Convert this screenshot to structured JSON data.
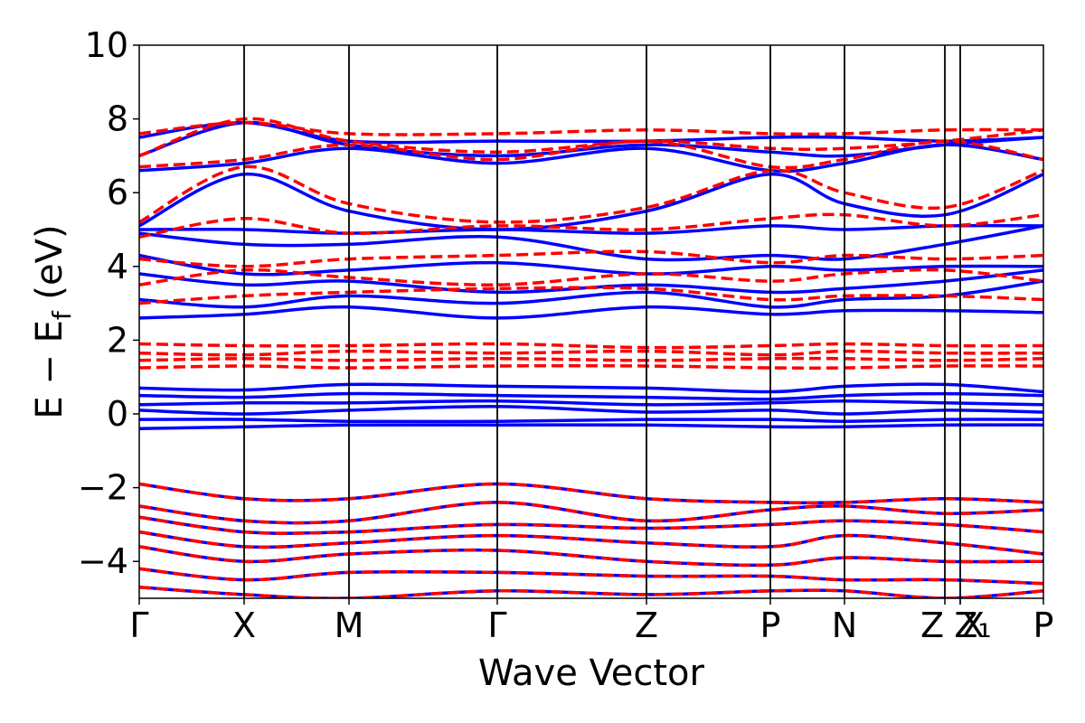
{
  "chart_data": {
    "type": "line",
    "xlabel": "Wave Vector",
    "ylabel": "E − E_f (eV)",
    "ylabel_parts": {
      "lead": "E − E",
      "sub": "f",
      "tail": " (eV)"
    },
    "ylim": [
      -5,
      10
    ],
    "yticks": [
      -4,
      -2,
      0,
      2,
      4,
      6,
      8,
      10
    ],
    "ytick_labels": [
      "−4",
      "−2",
      "0",
      "2",
      "4",
      "6",
      "8",
      "10"
    ],
    "kpath_labels": [
      "Γ",
      "X",
      "M",
      "Γ",
      "Z",
      "P",
      "N",
      "Z",
      "Z₁",
      "X",
      "P"
    ],
    "kpath_positions": [
      0,
      0.116,
      0.232,
      0.396,
      0.561,
      0.698,
      0.78,
      0.891,
      0.908,
      0.908,
      1.0
    ],
    "grid": false,
    "legend": "none",
    "colors": {
      "spin_up": "#0000ff",
      "spin_down": "#ff0000"
    },
    "series": [
      {
        "style": "solid",
        "color": "#0000ff",
        "bands": [
          {
            "x": [
              0,
              0.116,
              0.232,
              0.396,
              0.561,
              0.698,
              0.78,
              0.891,
              1.0
            ],
            "y": [
              -0.4,
              -0.35,
              -0.3,
              -0.3,
              -0.3,
              -0.35,
              -0.35,
              -0.3,
              -0.3
            ]
          },
          {
            "x": [
              0,
              0.116,
              0.232,
              0.396,
              0.561,
              0.698,
              0.78,
              0.891,
              1.0
            ],
            "y": [
              -0.15,
              -0.15,
              -0.2,
              -0.2,
              -0.15,
              -0.15,
              -0.2,
              -0.15,
              -0.15
            ]
          },
          {
            "x": [
              0,
              0.116,
              0.232,
              0.396,
              0.561,
              0.698,
              0.78,
              0.891,
              1.0
            ],
            "y": [
              0.1,
              0.0,
              0.1,
              0.2,
              0.05,
              0.1,
              0.0,
              0.1,
              0.05
            ]
          },
          {
            "x": [
              0,
              0.116,
              0.232,
              0.396,
              0.561,
              0.698,
              0.78,
              0.891,
              1.0
            ],
            "y": [
              0.25,
              0.3,
              0.3,
              0.35,
              0.25,
              0.3,
              0.35,
              0.3,
              0.25
            ]
          },
          {
            "x": [
              0,
              0.116,
              0.232,
              0.396,
              0.561,
              0.698,
              0.78,
              0.891,
              1.0
            ],
            "y": [
              0.5,
              0.45,
              0.55,
              0.5,
              0.45,
              0.4,
              0.5,
              0.55,
              0.5
            ]
          },
          {
            "x": [
              0,
              0.116,
              0.232,
              0.396,
              0.561,
              0.698,
              0.78,
              0.891,
              1.0
            ],
            "y": [
              0.7,
              0.65,
              0.8,
              0.75,
              0.7,
              0.6,
              0.75,
              0.8,
              0.6
            ]
          },
          {
            "x": [
              0,
              0.116,
              0.232,
              0.396,
              0.561,
              0.698,
              0.78,
              0.891,
              1.0
            ],
            "y": [
              2.6,
              2.7,
              2.9,
              2.6,
              2.9,
              2.7,
              2.8,
              2.8,
              2.75
            ]
          },
          {
            "x": [
              0,
              0.116,
              0.232,
              0.396,
              0.561,
              0.698,
              0.78,
              0.891,
              1.0
            ],
            "y": [
              3.1,
              2.9,
              3.2,
              3.0,
              3.3,
              2.9,
              3.1,
              3.2,
              3.6
            ]
          },
          {
            "x": [
              0,
              0.116,
              0.232,
              0.396,
              0.561,
              0.698,
              0.78,
              0.891,
              1.0
            ],
            "y": [
              3.8,
              3.5,
              3.6,
              3.3,
              3.5,
              3.3,
              3.4,
              3.6,
              3.9
            ]
          },
          {
            "x": [
              0,
              0.116,
              0.232,
              0.396,
              0.561,
              0.698,
              0.78,
              0.891,
              1.0
            ],
            "y": [
              4.3,
              3.8,
              3.9,
              4.1,
              3.8,
              4.0,
              3.9,
              4.0,
              4.0
            ]
          },
          {
            "x": [
              0,
              0.116,
              0.232,
              0.396,
              0.561,
              0.698,
              0.78,
              0.891,
              1.0
            ],
            "y": [
              4.9,
              4.6,
              4.6,
              4.8,
              4.2,
              4.3,
              4.2,
              4.6,
              5.1
            ]
          },
          {
            "x": [
              0,
              0.116,
              0.232,
              0.396,
              0.561,
              0.698,
              0.78,
              0.891,
              1.0
            ],
            "y": [
              5.0,
              5.0,
              4.9,
              5.0,
              4.9,
              5.1,
              5.0,
              5.1,
              5.1
            ]
          },
          {
            "x": [
              0,
              0.116,
              0.232,
              0.396,
              0.561,
              0.698,
              0.78,
              0.891,
              1.0
            ],
            "y": [
              5.1,
              6.5,
              5.5,
              5.0,
              5.5,
              6.5,
              5.7,
              5.4,
              6.5
            ]
          },
          {
            "x": [
              0,
              0.116,
              0.232,
              0.396,
              0.561,
              0.698,
              0.78,
              0.891,
              1.0
            ],
            "y": [
              6.6,
              6.8,
              7.2,
              6.8,
              7.2,
              6.6,
              6.8,
              7.3,
              6.9
            ]
          },
          {
            "x": [
              0,
              0.116,
              0.232,
              0.396,
              0.561,
              0.698,
              0.78,
              0.891,
              1.0
            ],
            "y": [
              7.0,
              7.9,
              7.3,
              7.0,
              7.3,
              7.1,
              7.0,
              7.3,
              7.5
            ]
          },
          {
            "x": [
              0,
              0.116,
              0.232,
              0.396,
              0.561,
              0.698,
              0.78,
              0.891,
              1.0
            ],
            "y": [
              7.5,
              7.9,
              7.4,
              7.4,
              7.4,
              7.5,
              7.5,
              7.4,
              7.5
            ]
          },
          {
            "x": [
              0,
              0.116,
              0.232,
              0.396,
              0.561,
              0.698,
              0.78,
              0.891,
              1.0
            ],
            "y": [
              -1.9,
              -2.3,
              -2.3,
              -1.9,
              -2.3,
              -2.4,
              -2.4,
              -2.3,
              -2.4
            ]
          },
          {
            "x": [
              0,
              0.116,
              0.232,
              0.396,
              0.561,
              0.698,
              0.78,
              0.891,
              1.0
            ],
            "y": [
              -2.5,
              -2.9,
              -2.9,
              -2.4,
              -2.9,
              -2.6,
              -2.5,
              -2.7,
              -2.6
            ]
          },
          {
            "x": [
              0,
              0.116,
              0.232,
              0.396,
              0.561,
              0.698,
              0.78,
              0.891,
              1.0
            ],
            "y": [
              -2.8,
              -3.2,
              -3.2,
              -3.0,
              -3.1,
              -3.0,
              -2.9,
              -3.0,
              -3.2
            ]
          },
          {
            "x": [
              0,
              0.116,
              0.232,
              0.396,
              0.561,
              0.698,
              0.78,
              0.891,
              1.0
            ],
            "y": [
              -3.2,
              -3.6,
              -3.5,
              -3.3,
              -3.5,
              -3.6,
              -3.3,
              -3.5,
              -3.8
            ]
          },
          {
            "x": [
              0,
              0.116,
              0.232,
              0.396,
              0.561,
              0.698,
              0.78,
              0.891,
              1.0
            ],
            "y": [
              -3.6,
              -4.0,
              -3.8,
              -3.7,
              -4.0,
              -4.1,
              -3.9,
              -4.0,
              -4.0
            ]
          },
          {
            "x": [
              0,
              0.116,
              0.232,
              0.396,
              0.561,
              0.698,
              0.78,
              0.891,
              1.0
            ],
            "y": [
              -4.2,
              -4.5,
              -4.3,
              -4.3,
              -4.4,
              -4.4,
              -4.5,
              -4.5,
              -4.6
            ]
          },
          {
            "x": [
              0,
              0.116,
              0.232,
              0.396,
              0.561,
              0.698,
              0.78,
              0.891,
              1.0
            ],
            "y": [
              -4.7,
              -4.9,
              -5.0,
              -4.8,
              -4.9,
              -4.8,
              -4.8,
              -5.0,
              -4.8
            ]
          }
        ]
      },
      {
        "style": "dashed",
        "color": "#ff0000",
        "bands": [
          {
            "x": [
              0,
              0.116,
              0.232,
              0.396,
              0.561,
              0.698,
              0.78,
              0.891,
              1.0
            ],
            "y": [
              1.25,
              1.3,
              1.25,
              1.3,
              1.3,
              1.25,
              1.25,
              1.3,
              1.3
            ]
          },
          {
            "x": [
              0,
              0.116,
              0.232,
              0.396,
              0.561,
              0.698,
              0.78,
              0.891,
              1.0
            ],
            "y": [
              1.45,
              1.5,
              1.45,
              1.5,
              1.45,
              1.5,
              1.5,
              1.45,
              1.5
            ]
          },
          {
            "x": [
              0,
              0.116,
              0.232,
              0.396,
              0.561,
              0.698,
              0.78,
              0.891,
              1.0
            ],
            "y": [
              1.65,
              1.6,
              1.7,
              1.65,
              1.7,
              1.6,
              1.7,
              1.65,
              1.65
            ]
          },
          {
            "x": [
              0,
              0.116,
              0.232,
              0.396,
              0.561,
              0.698,
              0.78,
              0.891,
              1.0
            ],
            "y": [
              1.9,
              1.85,
              1.85,
              1.9,
              1.8,
              1.85,
              1.9,
              1.85,
              1.85
            ]
          },
          {
            "x": [
              0,
              0.116,
              0.232,
              0.396,
              0.561,
              0.698,
              0.78,
              0.891,
              1.0
            ],
            "y": [
              3.0,
              3.2,
              3.3,
              3.4,
              3.4,
              3.1,
              3.2,
              3.2,
              3.1
            ]
          },
          {
            "x": [
              0,
              0.116,
              0.232,
              0.396,
              0.561,
              0.698,
              0.78,
              0.891,
              1.0
            ],
            "y": [
              3.5,
              3.9,
              3.7,
              3.5,
              3.8,
              3.6,
              3.8,
              3.9,
              3.6
            ]
          },
          {
            "x": [
              0,
              0.116,
              0.232,
              0.396,
              0.561,
              0.698,
              0.78,
              0.891,
              1.0
            ],
            "y": [
              4.2,
              4.0,
              4.2,
              4.3,
              4.4,
              4.1,
              4.3,
              4.2,
              4.3
            ]
          },
          {
            "x": [
              0,
              0.116,
              0.232,
              0.396,
              0.561,
              0.698,
              0.78,
              0.891,
              1.0
            ],
            "y": [
              4.8,
              5.3,
              4.9,
              5.1,
              5.0,
              5.3,
              5.4,
              5.1,
              5.4
            ]
          },
          {
            "x": [
              0,
              0.116,
              0.232,
              0.396,
              0.561,
              0.698,
              0.78,
              0.891,
              1.0
            ],
            "y": [
              5.2,
              6.7,
              5.7,
              5.2,
              5.6,
              6.6,
              6.0,
              5.6,
              6.6
            ]
          },
          {
            "x": [
              0,
              0.116,
              0.232,
              0.396,
              0.561,
              0.698,
              0.78,
              0.891,
              1.0
            ],
            "y": [
              6.7,
              6.9,
              7.3,
              6.9,
              7.4,
              6.7,
              6.9,
              7.4,
              6.9
            ]
          },
          {
            "x": [
              0,
              0.116,
              0.232,
              0.396,
              0.561,
              0.698,
              0.78,
              0.891,
              1.0
            ],
            "y": [
              7.0,
              8.0,
              7.4,
              7.1,
              7.4,
              7.2,
              7.2,
              7.4,
              7.7
            ]
          },
          {
            "x": [
              0,
              0.116,
              0.232,
              0.396,
              0.561,
              0.698,
              0.78,
              0.891,
              1.0
            ],
            "y": [
              7.6,
              7.9,
              7.6,
              7.6,
              7.7,
              7.6,
              7.6,
              7.7,
              7.7
            ]
          },
          {
            "x": [
              0,
              0.116,
              0.232,
              0.396,
              0.561,
              0.698,
              0.78,
              0.891,
              1.0
            ],
            "y": [
              -1.9,
              -2.3,
              -2.3,
              -1.9,
              -2.3,
              -2.4,
              -2.4,
              -2.3,
              -2.4
            ]
          },
          {
            "x": [
              0,
              0.116,
              0.232,
              0.396,
              0.561,
              0.698,
              0.78,
              0.891,
              1.0
            ],
            "y": [
              -2.5,
              -2.9,
              -2.9,
              -2.4,
              -2.9,
              -2.6,
              -2.5,
              -2.7,
              -2.6
            ]
          },
          {
            "x": [
              0,
              0.116,
              0.232,
              0.396,
              0.561,
              0.698,
              0.78,
              0.891,
              1.0
            ],
            "y": [
              -2.8,
              -3.2,
              -3.2,
              -3.0,
              -3.1,
              -3.0,
              -2.9,
              -3.0,
              -3.2
            ]
          },
          {
            "x": [
              0,
              0.116,
              0.232,
              0.396,
              0.561,
              0.698,
              0.78,
              0.891,
              1.0
            ],
            "y": [
              -3.2,
              -3.6,
              -3.5,
              -3.3,
              -3.5,
              -3.6,
              -3.3,
              -3.5,
              -3.8
            ]
          },
          {
            "x": [
              0,
              0.116,
              0.232,
              0.396,
              0.561,
              0.698,
              0.78,
              0.891,
              1.0
            ],
            "y": [
              -3.6,
              -4.0,
              -3.8,
              -3.7,
              -4.0,
              -4.1,
              -3.9,
              -4.0,
              -4.0
            ]
          },
          {
            "x": [
              0,
              0.116,
              0.232,
              0.396,
              0.561,
              0.698,
              0.78,
              0.891,
              1.0
            ],
            "y": [
              -4.2,
              -4.5,
              -4.3,
              -4.3,
              -4.4,
              -4.4,
              -4.5,
              -4.5,
              -4.6
            ]
          },
          {
            "x": [
              0,
              0.116,
              0.232,
              0.396,
              0.561,
              0.698,
              0.78,
              0.891,
              1.0
            ],
            "y": [
              -4.7,
              -4.9,
              -5.0,
              -4.8,
              -4.9,
              -4.8,
              -4.8,
              -5.0,
              -4.8
            ]
          }
        ]
      }
    ]
  }
}
